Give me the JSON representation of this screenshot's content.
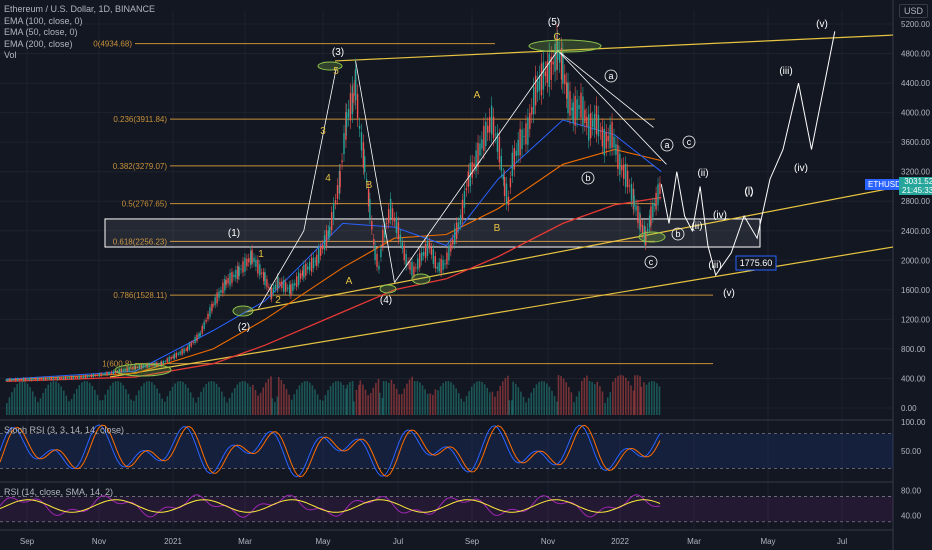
{
  "header": {
    "symbol_title": "Ethereum / U.S. Dollar, 1D, BINANCE",
    "indicators": [
      "EMA (100, close, 0)",
      "EMA (50, close, 0)",
      "EMA (200, close)",
      "Vol"
    ],
    "currency": "USD"
  },
  "ticker": {
    "symbol": "ETHUSD",
    "price": "3031.52",
    "countdown": "21:45:33"
  },
  "colors": {
    "background": "#131722",
    "grid": "#1e222d",
    "fib": "#c8913a",
    "trend": "#e6c341",
    "ema100": "#e53935",
    "ema50": "#2962ff",
    "ema200": "#ef6c00",
    "price": "#d1d4dc",
    "projection": "#ffffff",
    "ellipse": "#8bc34a",
    "stoch_k": "#2962ff",
    "stoch_d": "#ff6d00",
    "rsi": "#9c27b0",
    "rsi_ma": "#ffeb3b"
  },
  "chart_data": [
    {
      "type": "line",
      "y_axis": {
        "labels": [
          "5200.00",
          "4800.00",
          "4400.00",
          "4000.00",
          "3600.00",
          "3200.00",
          "2800.00",
          "2400.00",
          "2000.00",
          "1600.00",
          "1200.00",
          "800.00",
          "400.00",
          "0.00"
        ],
        "range": [
          0,
          5400
        ]
      },
      "x_axis": {
        "labels": [
          "Sep",
          "Nov",
          "2021",
          "Mar",
          "May",
          "Jul",
          "Sep",
          "Nov",
          "2022",
          "Mar",
          "May",
          "Jul"
        ]
      },
      "price_path": [
        [
          0,
          380
        ],
        [
          20,
          390
        ],
        [
          40,
          400
        ],
        [
          60,
          420
        ],
        [
          80,
          470
        ],
        [
          100,
          550
        ],
        [
          120,
          600
        ],
        [
          130,
          700
        ],
        [
          140,
          800
        ],
        [
          150,
          1000
        ],
        [
          160,
          1400
        ],
        [
          170,
          1700
        ],
        [
          180,
          1850
        ],
        [
          190,
          2050
        ],
        [
          200,
          1750
        ],
        [
          205,
          1550
        ],
        [
          210,
          1700
        ],
        [
          220,
          1600
        ],
        [
          230,
          1850
        ],
        [
          240,
          2000
        ],
        [
          250,
          2400
        ],
        [
          258,
          3100
        ],
        [
          263,
          3900
        ],
        [
          268,
          4200
        ],
        [
          270,
          4380
        ],
        [
          273,
          3800
        ],
        [
          277,
          3300
        ],
        [
          281,
          2700
        ],
        [
          285,
          2100
        ],
        [
          288,
          1900
        ],
        [
          291,
          2300
        ],
        [
          297,
          2700
        ],
        [
          303,
          2400
        ],
        [
          309,
          2000
        ],
        [
          315,
          1850
        ],
        [
          321,
          2050
        ],
        [
          327,
          2200
        ],
        [
          333,
          1900
        ],
        [
          339,
          1950
        ],
        [
          345,
          2250
        ],
        [
          351,
          2550
        ],
        [
          357,
          3100
        ],
        [
          363,
          3350
        ],
        [
          369,
          3650
        ],
        [
          375,
          3900
        ],
        [
          381,
          3500
        ],
        [
          385,
          3000
        ],
        [
          388,
          2800
        ],
        [
          391,
          3300
        ],
        [
          397,
          3600
        ],
        [
          403,
          3750
        ],
        [
          409,
          4300
        ],
        [
          415,
          4500
        ],
        [
          421,
          4600
        ],
        [
          426,
          4840
        ],
        [
          430,
          4600
        ],
        [
          434,
          4200
        ],
        [
          438,
          4000
        ],
        [
          444,
          4100
        ],
        [
          450,
          3800
        ],
        [
          456,
          3900
        ],
        [
          462,
          3600
        ],
        [
          468,
          3700
        ],
        [
          474,
          3300
        ],
        [
          480,
          3100
        ],
        [
          485,
          2800
        ],
        [
          490,
          2500
        ],
        [
          494,
          2300
        ],
        [
          498,
          2600
        ],
        [
          502,
          2800
        ],
        [
          506,
          3031
        ]
      ],
      "ema100_path": [
        [
          0,
          380
        ],
        [
          100,
          470
        ],
        [
          160,
          800
        ],
        [
          200,
          1200
        ],
        [
          260,
          1900
        ],
        [
          300,
          2300
        ],
        [
          340,
          2350
        ],
        [
          380,
          2700
        ],
        [
          430,
          3300
        ],
        [
          470,
          3500
        ],
        [
          506,
          3350
        ]
      ],
      "ema50_path": [
        [
          0,
          390
        ],
        [
          100,
          500
        ],
        [
          160,
          1050
        ],
        [
          200,
          1450
        ],
        [
          260,
          2500
        ],
        [
          300,
          2450
        ],
        [
          340,
          2200
        ],
        [
          380,
          3100
        ],
        [
          430,
          3900
        ],
        [
          470,
          3700
        ],
        [
          506,
          3200
        ]
      ],
      "ema200_path": [
        [
          0,
          360
        ],
        [
          100,
          420
        ],
        [
          160,
          600
        ],
        [
          200,
          850
        ],
        [
          260,
          1300
        ],
        [
          300,
          1600
        ],
        [
          340,
          1750
        ],
        [
          380,
          2050
        ],
        [
          430,
          2500
        ],
        [
          470,
          2750
        ],
        [
          506,
          2850
        ]
      ],
      "projection_path": [
        [
          506,
          3031
        ],
        [
          512,
          2500
        ],
        [
          518,
          3200
        ],
        [
          524,
          2600
        ],
        [
          530,
          2400
        ],
        [
          536,
          3000
        ],
        [
          542,
          2200
        ],
        [
          548,
          1800
        ],
        [
          560,
          2100
        ],
        [
          570,
          2600
        ],
        [
          580,
          2300
        ],
        [
          590,
          3100
        ],
        [
          600,
          3500
        ],
        [
          612,
          4400
        ],
        [
          622,
          3500
        ],
        [
          640,
          5100
        ]
      ],
      "fib_levels": [
        {
          "label": "0(4934.68)",
          "value": 4934.68
        },
        {
          "label": "0.236(3911.84)",
          "value": 3911.84
        },
        {
          "label": "0.382(3279.07)",
          "value": 3279.07
        },
        {
          "label": "0.5(2767.65)",
          "value": 2767.65
        },
        {
          "label": "0.618(2256.23)",
          "value": 2256.23
        },
        {
          "label": "0.786(1528.11)",
          "value": 1528.11
        },
        {
          "label": "1(600.8)",
          "value": 600.8
        }
      ],
      "support_box": {
        "y_top": 2560,
        "y_bottom": 2180
      },
      "target_label": "1775.60",
      "wave_labels_white": [
        "(1)",
        "(2)",
        "(3)",
        "(4)",
        "(5)",
        "(i)",
        "(ii)",
        "(iii)",
        "(iv)",
        "(v)",
        "(i)",
        "(ii)",
        "(iii)",
        "(iv)",
        "(v)"
      ],
      "wave_labels_yellow": [
        "1",
        "2",
        "3",
        "4",
        "5",
        "A",
        "B",
        "A",
        "B",
        "C"
      ],
      "circled_labels": [
        "a",
        "b",
        "c",
        "a",
        "b",
        "c"
      ],
      "volume_axis": [
        "400.00",
        "0.00"
      ]
    },
    {
      "type": "line",
      "title": "Stoch RSI (3, 3, 14, 14, close)",
      "y_axis": {
        "labels": [
          "100.00",
          "50.00"
        ],
        "range": [
          0,
          100
        ]
      },
      "bands": [
        80,
        20
      ]
    },
    {
      "type": "line",
      "title": "RSI (14, close, SMA, 14, 2)",
      "y_axis": {
        "labels": [
          "80.00",
          "40.00"
        ],
        "range": [
          20,
          90
        ]
      },
      "bands": [
        70,
        30
      ]
    }
  ]
}
